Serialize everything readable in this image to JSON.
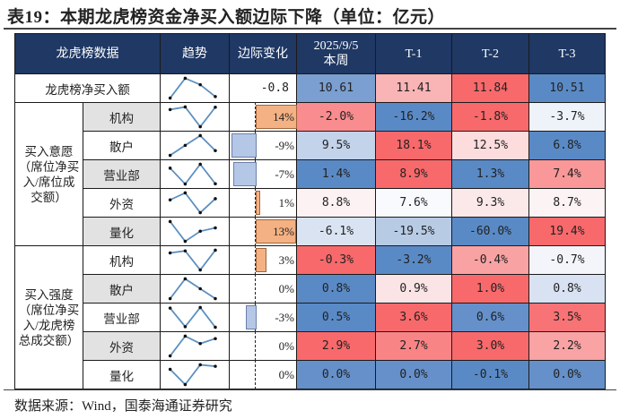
{
  "title": "表19：本期龙虎榜资金净买入额边际下降（单位：亿元）",
  "source": "数据来源：Wind，国泰海通证券研究",
  "header": {
    "data": "龙虎榜数据",
    "trend": "趋势",
    "margin": "边际变化",
    "current_date": "2025/9/5",
    "current_label": "本周",
    "t1": "T-1",
    "t2": "T-2",
    "t3": "T-3"
  },
  "colors": {
    "header_bg": "#1f3864",
    "bar_positive": "#f4b183",
    "bar_negative": "#b4c7e7",
    "heat_high": "#f8696b",
    "heat_low": "#5a8ac6"
  },
  "net_buy": {
    "label": "龙虎榜净买入额",
    "margin": "-0.8",
    "margin_value": -0.8,
    "values": [
      "10.61",
      "11.41",
      "11.84",
      "10.51"
    ],
    "numbers": [
      10.61,
      11.41,
      11.84,
      10.51
    ],
    "cell_colors": [
      "#7a9fd0",
      "#f9b4b6",
      "#f8696b",
      "#5a8ac6"
    ]
  },
  "groups": [
    {
      "label": "买入意愿（席位净买入/席位成交额）",
      "rows": [
        {
          "label": "机构",
          "margin": "14%",
          "margin_value": 14,
          "values": [
            "-2.0%",
            "-16.2%",
            "-1.8%",
            "-3.7%"
          ],
          "numbers": [
            -2.0,
            -16.2,
            -1.8,
            -3.7
          ],
          "cell_colors": [
            "#f98c8e",
            "#5a8ac6",
            "#f8696b",
            "#eef2f9"
          ]
        },
        {
          "label": "散户",
          "margin": "-9%",
          "margin_value": -9,
          "values": [
            "9.5%",
            "18.1%",
            "12.5%",
            "6.8%"
          ],
          "numbers": [
            9.5,
            18.1,
            12.5,
            6.8
          ],
          "cell_colors": [
            "#c2d3ea",
            "#f8696b",
            "#fcdcdd",
            "#5a8ac6"
          ]
        },
        {
          "label": "营业部",
          "margin": "-7%",
          "margin_value": -7,
          "values": [
            "1.4%",
            "8.9%",
            "1.3%",
            "7.4%"
          ],
          "numbers": [
            1.4,
            8.9,
            1.3,
            7.4
          ],
          "cell_colors": [
            "#5a8ac6",
            "#f8696b",
            "#5a8ac6",
            "#f99799"
          ]
        },
        {
          "label": "外资",
          "margin": "1%",
          "margin_value": 1,
          "values": [
            "8.8%",
            "7.6%",
            "9.3%",
            "8.7%"
          ],
          "numbers": [
            8.8,
            7.6,
            9.3,
            8.7
          ],
          "cell_colors": [
            "#fcf2f3",
            "#f8fafd",
            "#fbe9ea",
            "#fcf3f4"
          ]
        },
        {
          "label": "量化",
          "margin": "13%",
          "margin_value": 13,
          "values": [
            "-6.1%",
            "-19.5%",
            "-60.0%",
            "19.4%"
          ],
          "numbers": [
            -6.1,
            -19.5,
            -60.0,
            19.4
          ],
          "cell_colors": [
            "#d9e3f2",
            "#b8cbe5",
            "#5a8ac6",
            "#f8696b"
          ]
        }
      ]
    },
    {
      "label": "买入强度（席位净买入/龙虎榜总成交额）",
      "rows": [
        {
          "label": "机构",
          "margin": "3%",
          "margin_value": 3,
          "values": [
            "-0.3%",
            "-3.2%",
            "-0.4%",
            "-0.7%"
          ],
          "numbers": [
            -0.3,
            -3.2,
            -0.4,
            -0.7
          ],
          "cell_colors": [
            "#f8696b",
            "#5a8ac6",
            "#f9a2a4",
            "#f3f5fa"
          ]
        },
        {
          "label": "散户",
          "margin": "0%",
          "margin_value": 0,
          "values": [
            "0.8%",
            "0.9%",
            "1.0%",
            "0.8%"
          ],
          "numbers": [
            0.8,
            0.9,
            1.0,
            0.8
          ],
          "cell_colors": [
            "#5a8ac6",
            "#fbe4e6",
            "#f8696b",
            "#d8e2f2"
          ]
        },
        {
          "label": "营业部",
          "margin": "-3%",
          "margin_value": -3,
          "values": [
            "0.5%",
            "3.6%",
            "0.6%",
            "3.5%"
          ],
          "numbers": [
            0.5,
            3.6,
            0.6,
            3.5
          ],
          "cell_colors": [
            "#5a8ac6",
            "#f8696b",
            "#6590ca",
            "#f87375"
          ]
        },
        {
          "label": "外资",
          "margin": "0%",
          "margin_value": 0,
          "values": [
            "2.9%",
            "2.7%",
            "3.0%",
            "2.2%"
          ],
          "numbers": [
            2.9,
            2.7,
            3.0,
            2.2
          ],
          "cell_colors": [
            "#f8696b",
            "#f98486",
            "#f8696b",
            "#f9a3a5"
          ]
        },
        {
          "label": "量化",
          "margin": "0%",
          "margin_value": 0,
          "values": [
            "0.0%",
            "0.0%",
            "-0.1%",
            "0.0%"
          ],
          "numbers": [
            0.02,
            0.03,
            -0.1,
            0.0
          ],
          "cell_colors": [
            "#6590ca",
            "#6590ca",
            "#5a8ac6",
            "#6590ca"
          ]
        }
      ]
    }
  ]
}
